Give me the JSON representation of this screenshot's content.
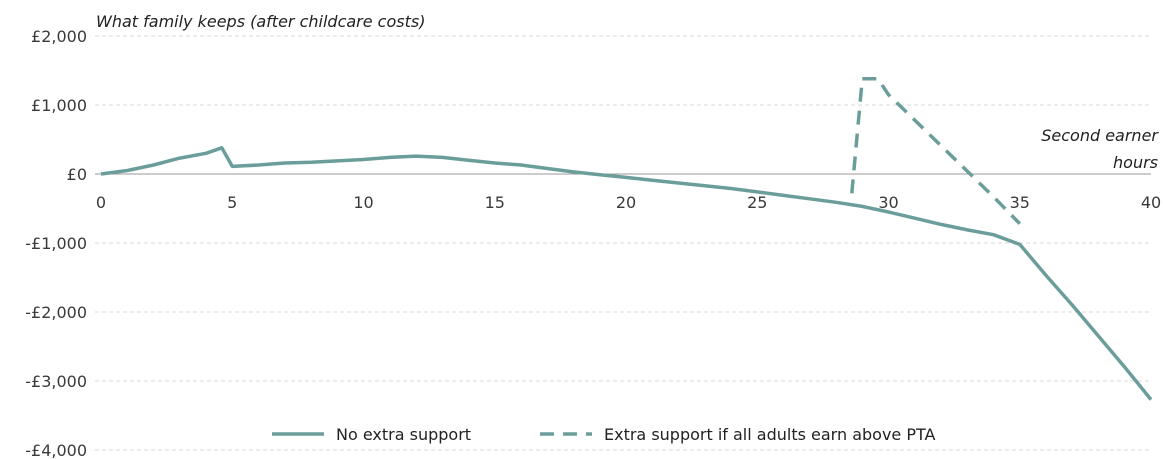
{
  "chart_data": {
    "type": "line",
    "title": "",
    "ylabel": "What family keeps (after childcare costs)",
    "xlabel": [
      "Second earner",
      "hours"
    ],
    "xlim": [
      0,
      40
    ],
    "ylim": [
      -4000,
      2000
    ],
    "x_ticks": [
      0,
      5,
      10,
      15,
      20,
      25,
      30,
      35,
      40
    ],
    "x_tick_labels": [
      "0",
      "5",
      "10",
      "15",
      "20",
      "25",
      "30",
      "35",
      "40"
    ],
    "y_ticks": [
      2000,
      1000,
      0,
      -1000,
      -2000,
      -3000,
      -4000
    ],
    "y_tick_labels": [
      "£2,000",
      "£1,000",
      "£0",
      "-£1,000",
      "-£2,000",
      "-£3,000",
      "-£4,000"
    ],
    "grid": "horizontal-dashed",
    "legend_position": "bottom",
    "series": [
      {
        "name": "No extra support",
        "style": "solid",
        "color": "#6b9e9a",
        "points": [
          [
            0,
            0
          ],
          [
            1,
            50
          ],
          [
            2,
            130
          ],
          [
            3,
            230
          ],
          [
            4,
            300
          ],
          [
            4.6,
            380
          ],
          [
            5,
            110
          ],
          [
            6,
            130
          ],
          [
            7,
            160
          ],
          [
            8,
            170
          ],
          [
            9,
            190
          ],
          [
            10,
            210
          ],
          [
            11,
            240
          ],
          [
            12,
            260
          ],
          [
            13,
            240
          ],
          [
            14,
            200
          ],
          [
            15,
            160
          ],
          [
            16,
            130
          ],
          [
            17,
            80
          ],
          [
            18,
            30
          ],
          [
            19,
            -10
          ],
          [
            20,
            -50
          ],
          [
            21,
            -90
          ],
          [
            22,
            -130
          ],
          [
            23,
            -170
          ],
          [
            24,
            -210
          ],
          [
            25,
            -260
          ],
          [
            26,
            -310
          ],
          [
            27,
            -360
          ],
          [
            28,
            -410
          ],
          [
            29,
            -470
          ],
          [
            30,
            -550
          ],
          [
            31,
            -640
          ],
          [
            32,
            -730
          ],
          [
            33,
            -810
          ],
          [
            34,
            -880
          ],
          [
            35,
            -1020
          ],
          [
            36,
            -1470
          ],
          [
            37,
            -1900
          ],
          [
            38,
            -2350
          ],
          [
            39,
            -2800
          ],
          [
            40,
            -3270
          ]
        ]
      },
      {
        "name": "Extra support if all adults earn above PTA",
        "style": "dashed",
        "color": "#6b9e9a",
        "points": [
          [
            28.6,
            -280
          ],
          [
            29,
            1380
          ],
          [
            29.6,
            1380
          ],
          [
            30,
            1150
          ],
          [
            31,
            780
          ],
          [
            32,
            410
          ],
          [
            33,
            40
          ],
          [
            34,
            -330
          ],
          [
            35,
            -720
          ]
        ]
      }
    ]
  }
}
